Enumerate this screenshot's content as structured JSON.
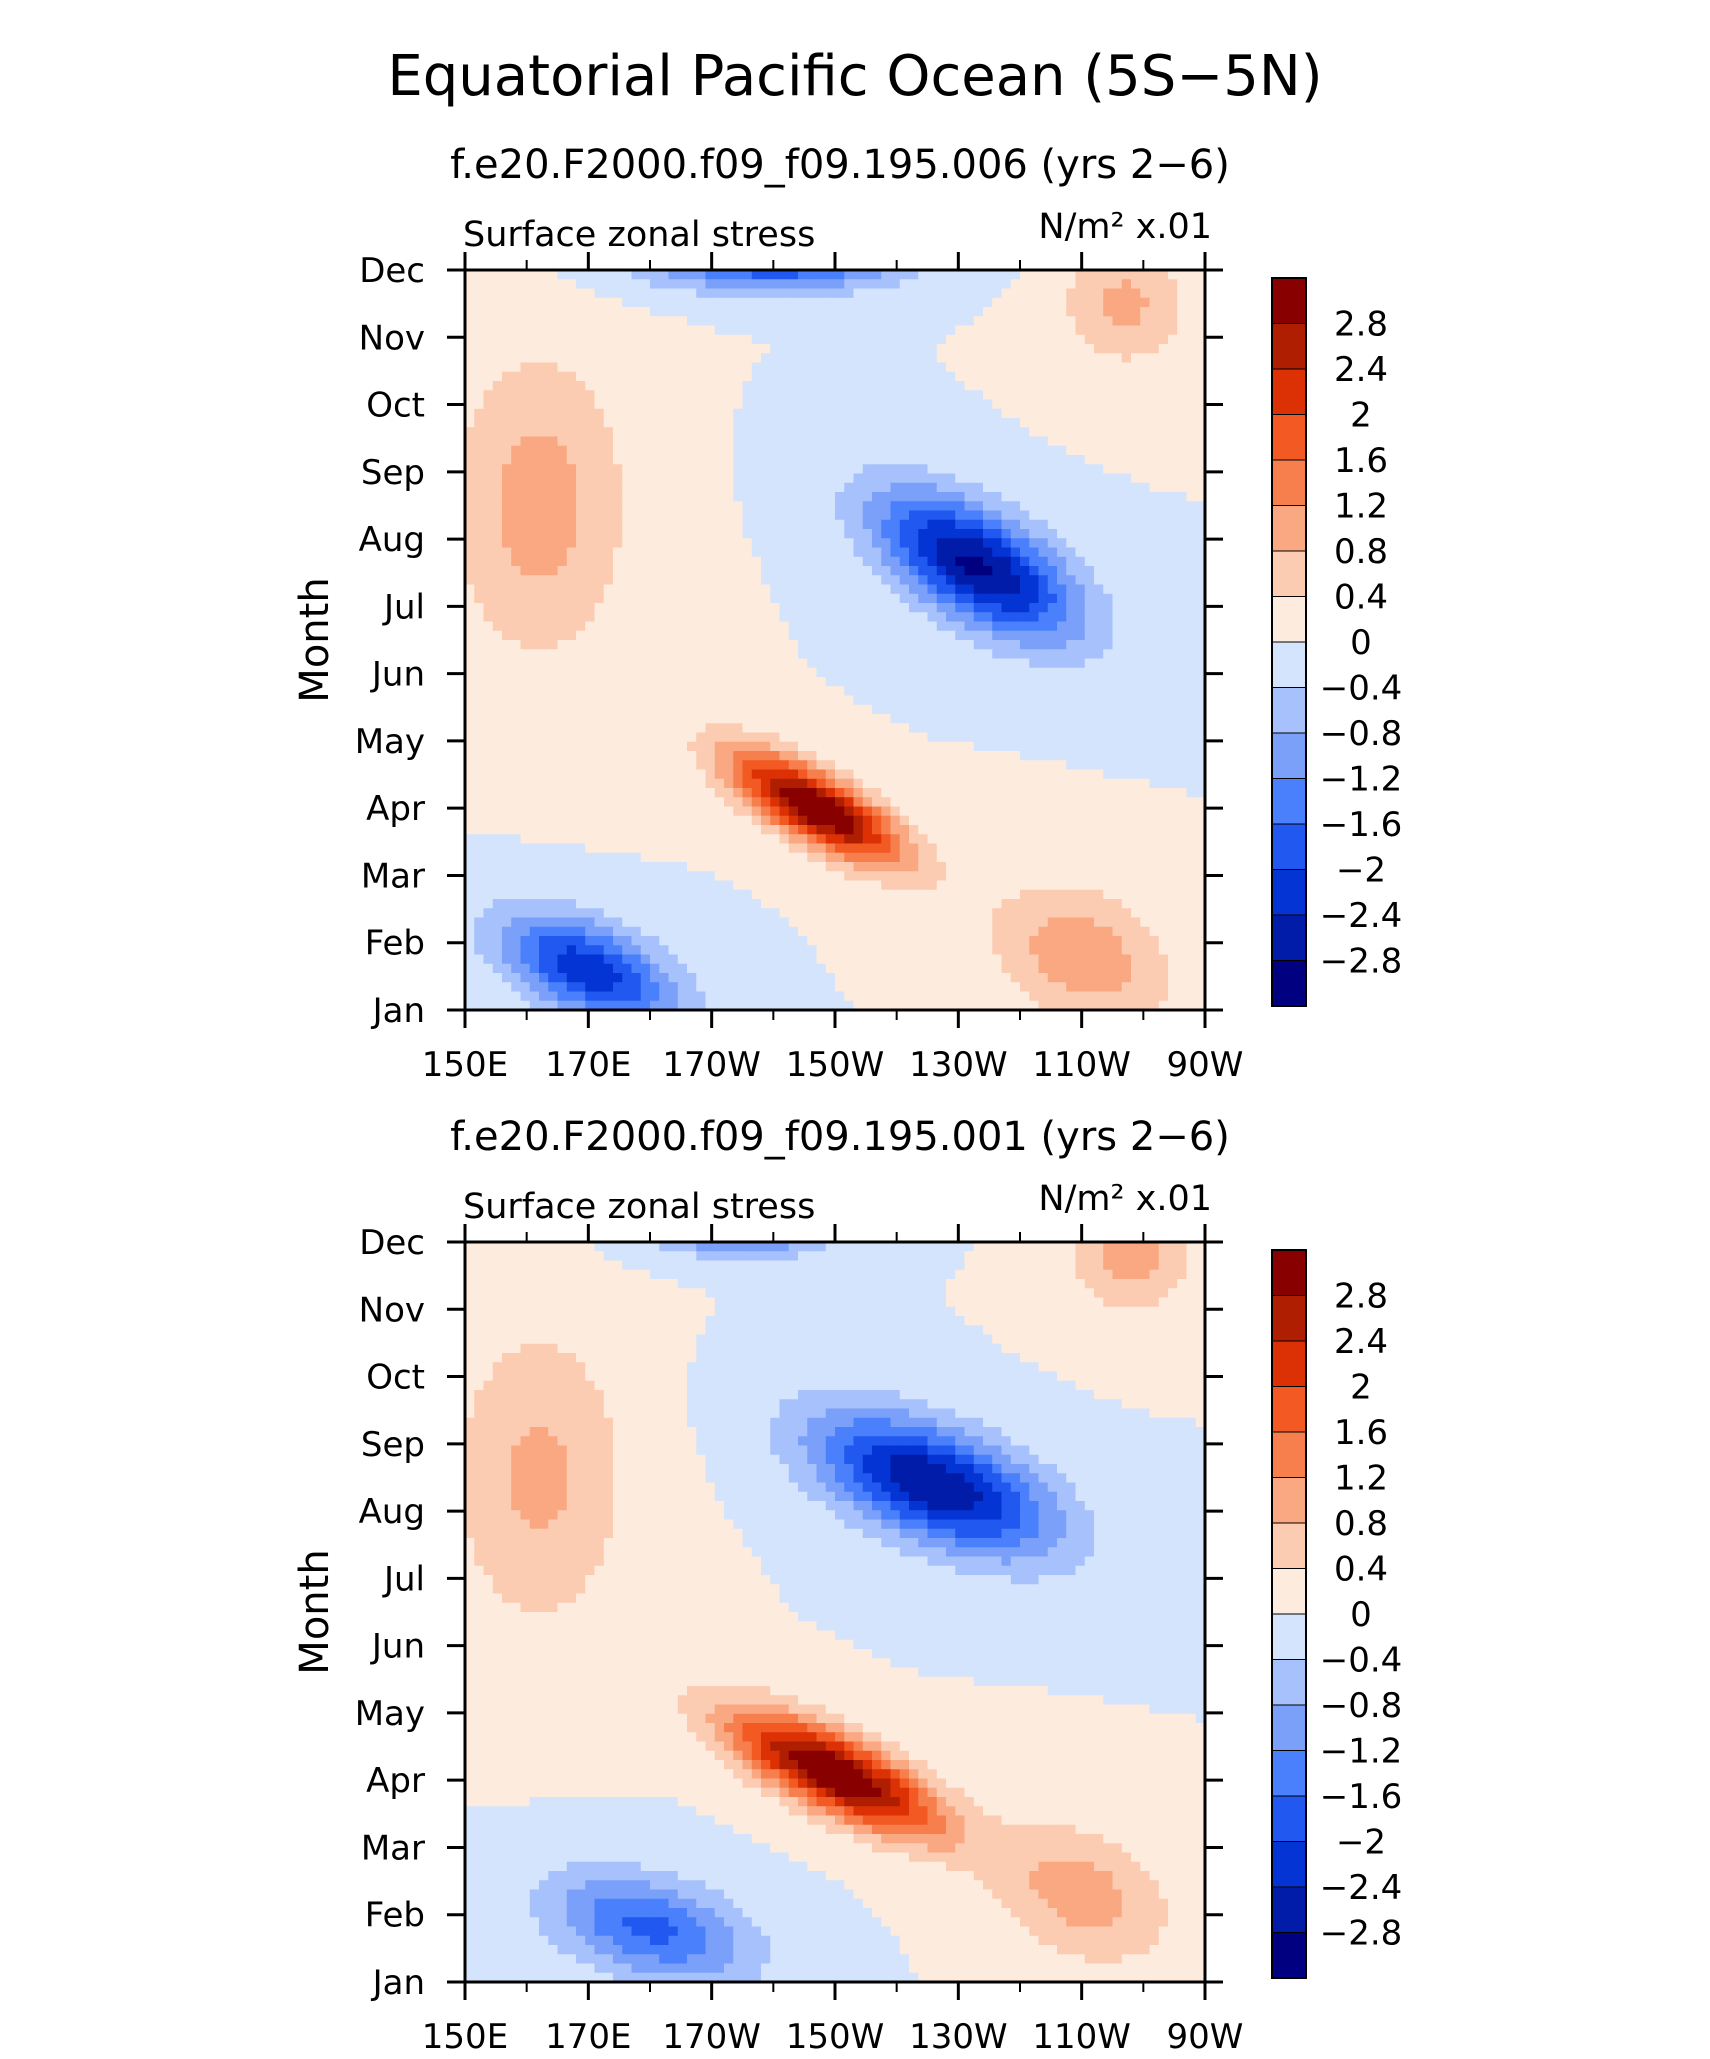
{
  "title": "Equatorial Pacific Ocean (5S−5N)",
  "colors": {
    "levels": [
      "#000080",
      "#001ca8",
      "#0435d4",
      "#2158ef",
      "#4a80fb",
      "#7ba0fa",
      "#a6c1fb",
      "#d4e4fc",
      "#fdebdd",
      "#fbcbb2",
      "#f9a882",
      "#f77f4e",
      "#f35a23",
      "#dc3005",
      "#b01e02",
      "#880000"
    ]
  },
  "chart_data": [
    {
      "type": "heatmap",
      "subtitle": "f.e20.F2000.f09_f09.195.006 (yrs 2−6)",
      "left_label": "Surface zonal stress",
      "units_label": "N/m² x.01",
      "ylabel": "Month",
      "xlabel": "",
      "x_tick_labels": [
        "150E",
        "170E",
        "170W",
        "150W",
        "130W",
        "110W",
        "90W"
      ],
      "x_range": [
        150,
        270
      ],
      "y_tick_labels": [
        "Jan",
        "Feb",
        "Mar",
        "Apr",
        "May",
        "Jun",
        "Jul",
        "Aug",
        "Sep",
        "Oct",
        "Nov",
        "Dec"
      ],
      "colorbar_labels": [
        "2.8",
        "2.4",
        "2",
        "1.6",
        "1.2",
        "0.8",
        "0.4",
        "0",
        "−0.4",
        "−0.8",
        "−1.2",
        "−1.6",
        "−2",
        "−2.4",
        "−2.8"
      ],
      "contour_levels": [
        -2.8,
        -2.4,
        -2,
        -1.6,
        -1.2,
        -0.8,
        -0.4,
        0,
        0.4,
        0.8,
        1.2,
        1.6,
        2,
        2.4,
        2.8
      ],
      "features": [
        {
          "lon": 207,
          "month": 3.0,
          "amp": 3.3,
          "slon": 14,
          "smon": 0.55,
          "tilt": -0.045
        },
        {
          "lon": 233,
          "month": 6.6,
          "amp": -2.9,
          "slon": 16,
          "smon": 0.85,
          "tilt": -0.04
        },
        {
          "lon": 170,
          "month": 0.6,
          "amp": -2.3,
          "slon": 14,
          "smon": 0.7,
          "tilt": -0.03
        },
        {
          "lon": 200,
          "month": 11.1,
          "amp": -2.0,
          "slon": 20,
          "smon": 0.4,
          "tilt": 0
        },
        {
          "lon": 162,
          "month": 7.5,
          "amp": 1.0,
          "slon": 14,
          "smon": 2.2,
          "tilt": 0
        },
        {
          "lon": 257,
          "month": 10.5,
          "amp": 0.9,
          "slon": 10,
          "smon": 0.9,
          "tilt": 0
        },
        {
          "lon": 250,
          "month": 0.8,
          "amp": 1.1,
          "slon": 14,
          "smon": 1.0,
          "tilt": -0.02
        }
      ]
    },
    {
      "type": "heatmap",
      "subtitle": "f.e20.F2000.f09_f09.195.001 (yrs 2−6)",
      "left_label": "Surface zonal stress",
      "units_label": "N/m² x.01",
      "ylabel": "Month",
      "xlabel": "",
      "x_tick_labels": [
        "150E",
        "170E",
        "170W",
        "150W",
        "130W",
        "110W",
        "90W"
      ],
      "x_range": [
        150,
        270
      ],
      "y_tick_labels": [
        "Jan",
        "Feb",
        "Mar",
        "Apr",
        "May",
        "Jun",
        "Jul",
        "Aug",
        "Sep",
        "Oct",
        "Nov",
        "Dec"
      ],
      "colorbar_labels": [
        "2.8",
        "2.4",
        "2",
        "1.6",
        "1.2",
        "0.8",
        "0.4",
        "0",
        "−0.4",
        "−0.8",
        "−1.2",
        "−1.6",
        "−2",
        "−2.4",
        "−2.8"
      ],
      "contour_levels": [
        -2.8,
        -2.4,
        -2,
        -1.6,
        -1.2,
        -0.8,
        -0.4,
        0,
        0.4,
        0.8,
        1.2,
        1.6,
        2,
        2.4,
        2.8
      ],
      "features": [
        {
          "lon": 210,
          "month": 3.1,
          "amp": 3.4,
          "slon": 17,
          "smon": 0.6,
          "tilt": -0.04
        },
        {
          "lon": 226,
          "month": 7.4,
          "amp": -2.8,
          "slon": 19,
          "smon": 0.85,
          "tilt": -0.03
        },
        {
          "lon": 180,
          "month": 0.8,
          "amp": -1.7,
          "slon": 16,
          "smon": 0.75,
          "tilt": -0.02
        },
        {
          "lon": 195,
          "month": 11.2,
          "amp": -1.6,
          "slon": 14,
          "smon": 0.4,
          "tilt": 0
        },
        {
          "lon": 162,
          "month": 7.5,
          "amp": 0.9,
          "slon": 14,
          "smon": 2.2,
          "tilt": 0
        },
        {
          "lon": 258,
          "month": 10.8,
          "amp": 1.0,
          "slon": 10,
          "smon": 0.8,
          "tilt": 0
        },
        {
          "lon": 250,
          "month": 1.3,
          "amp": 1.0,
          "slon": 14,
          "smon": 1.0,
          "tilt": -0.02
        }
      ]
    }
  ]
}
